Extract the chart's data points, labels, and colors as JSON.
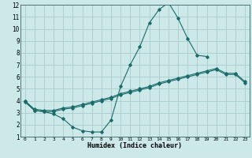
{
  "xlabel": "Humidex (Indice chaleur)",
  "bg_color": "#cce8e8",
  "grid_color": "#aacccc",
  "line_color": "#1a6b6b",
  "xlim": [
    -0.5,
    23.5
  ],
  "ylim": [
    1,
    12
  ],
  "xticks": [
    0,
    1,
    2,
    3,
    4,
    5,
    6,
    7,
    8,
    9,
    10,
    11,
    12,
    13,
    14,
    15,
    16,
    17,
    18,
    19,
    20,
    21,
    22,
    23
  ],
  "yticks": [
    1,
    2,
    3,
    4,
    5,
    6,
    7,
    8,
    9,
    10,
    11,
    12
  ],
  "line1_x": [
    0,
    1,
    2,
    3,
    4,
    5,
    6,
    7,
    8,
    9,
    10,
    11,
    12,
    13,
    14,
    15,
    16,
    17,
    18,
    19
  ],
  "line1_y": [
    4.0,
    3.2,
    3.1,
    2.9,
    2.5,
    1.8,
    1.5,
    1.4,
    1.4,
    2.4,
    5.2,
    7.0,
    8.5,
    10.5,
    11.6,
    12.2,
    10.9,
    9.2,
    7.8,
    7.7
  ],
  "line2_x": [
    0,
    1,
    2,
    3,
    4,
    5,
    6,
    7,
    8,
    9,
    10,
    11,
    12,
    13,
    14,
    15,
    16,
    17,
    18,
    19,
    20,
    21,
    22,
    23
  ],
  "line2_y": [
    3.9,
    3.2,
    3.1,
    3.1,
    3.3,
    3.4,
    3.6,
    3.8,
    4.0,
    4.2,
    4.5,
    4.7,
    4.9,
    5.1,
    5.4,
    5.6,
    5.8,
    6.0,
    6.2,
    6.4,
    6.6,
    6.2,
    6.2,
    5.5
  ],
  "line3_x": [
    0,
    1,
    2,
    3,
    4,
    5,
    6,
    7,
    8,
    9,
    10,
    11,
    12,
    13,
    14,
    15,
    16,
    17,
    18,
    19,
    20,
    21,
    22,
    23
  ],
  "line3_y": [
    4.0,
    3.3,
    3.2,
    3.2,
    3.4,
    3.5,
    3.7,
    3.9,
    4.1,
    4.3,
    4.6,
    4.8,
    5.0,
    5.2,
    5.5,
    5.7,
    5.9,
    6.1,
    6.3,
    6.5,
    6.7,
    6.3,
    6.3,
    5.6
  ]
}
